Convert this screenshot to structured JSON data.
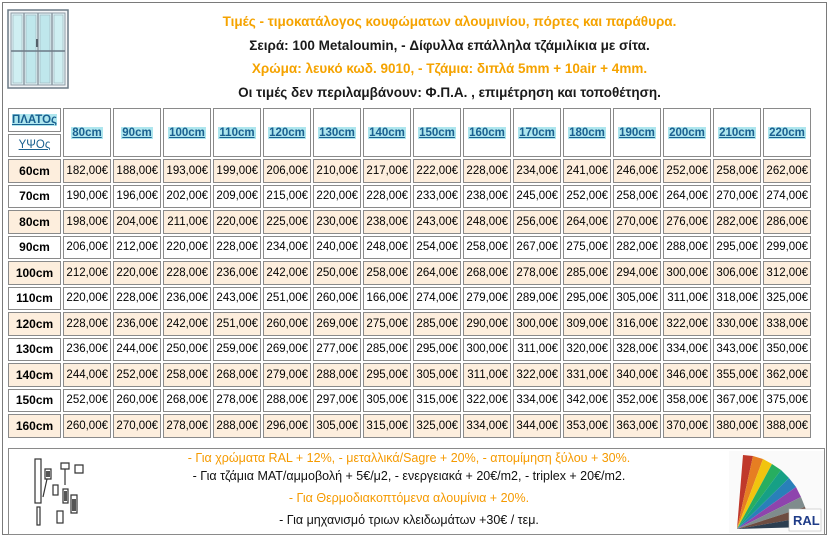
{
  "header": {
    "line1": "Τιμές - τιμοκατάλογος κουφώματων αλουμινίου, πόρτες και παράθυρα.",
    "line2": "Σειρά: 100 Metaloumin, - Δίφυλλα επάλληλα τζάμιλίκια με σίτα.",
    "line3": "Χρώμα: λευκό κωδ. 9010, - Τζάμια: διπλά 5mm + 10air + 4mm.",
    "line4": "Οι τιμές δεν περιλαμβάνουν: Φ.Π.Α. , επιμέτρηση και τοποθέτηση."
  },
  "table": {
    "width_label": "ΠΛΑΤΟς",
    "height_label": "ΥΨΟς",
    "widths": [
      "80cm",
      "90cm",
      "100cm",
      "110cm",
      "120cm",
      "130cm",
      "140cm",
      "150cm",
      "160cm",
      "170cm",
      "180cm",
      "190cm",
      "200cm",
      "210cm",
      "220cm"
    ],
    "rows": [
      {
        "h": "60cm",
        "p": [
          "182,00€",
          "188,00€",
          "193,00€",
          "199,00€",
          "206,00€",
          "210,00€",
          "217,00€",
          "222,00€",
          "228,00€",
          "234,00€",
          "241,00€",
          "246,00€",
          "252,00€",
          "258,00€",
          "262,00€"
        ]
      },
      {
        "h": "70cm",
        "p": [
          "190,00€",
          "196,00€",
          "202,00€",
          "209,00€",
          "215,00€",
          "220,00€",
          "228,00€",
          "233,00€",
          "238,00€",
          "245,00€",
          "252,00€",
          "258,00€",
          "264,00€",
          "270,00€",
          "274,00€"
        ]
      },
      {
        "h": "80cm",
        "p": [
          "198,00€",
          "204,00€",
          "211,00€",
          "220,00€",
          "225,00€",
          "230,00€",
          "238,00€",
          "243,00€",
          "248,00€",
          "256,00€",
          "264,00€",
          "270,00€",
          "276,00€",
          "282,00€",
          "286,00€"
        ]
      },
      {
        "h": "90cm",
        "p": [
          "206,00€",
          "212,00€",
          "220,00€",
          "228,00€",
          "234,00€",
          "240,00€",
          "248,00€",
          "254,00€",
          "258,00€",
          "267,00€",
          "275,00€",
          "282,00€",
          "288,00€",
          "295,00€",
          "299,00€"
        ]
      },
      {
        "h": "100cm",
        "p": [
          "212,00€",
          "220,00€",
          "228,00€",
          "236,00€",
          "242,00€",
          "250,00€",
          "258,00€",
          "264,00€",
          "268,00€",
          "278,00€",
          "285,00€",
          "294,00€",
          "300,00€",
          "306,00€",
          "312,00€"
        ]
      },
      {
        "h": "110cm",
        "p": [
          "220,00€",
          "228,00€",
          "236,00€",
          "243,00€",
          "251,00€",
          "260,00€",
          "166,00€",
          "274,00€",
          "279,00€",
          "289,00€",
          "295,00€",
          "305,00€",
          "311,00€",
          "318,00€",
          "325,00€"
        ]
      },
      {
        "h": "120cm",
        "p": [
          "228,00€",
          "236,00€",
          "242,00€",
          "251,00€",
          "260,00€",
          "269,00€",
          "275,00€",
          "285,00€",
          "290,00€",
          "300,00€",
          "309,00€",
          "316,00€",
          "322,00€",
          "330,00€",
          "338,00€"
        ]
      },
      {
        "h": "130cm",
        "p": [
          "236,00€",
          "244,00€",
          "250,00€",
          "259,00€",
          "269,00€",
          "277,00€",
          "285,00€",
          "295,00€",
          "300,00€",
          "311,00€",
          "320,00€",
          "328,00€",
          "334,00€",
          "343,00€",
          "350,00€"
        ]
      },
      {
        "h": "140cm",
        "p": [
          "244,00€",
          "252,00€",
          "258,00€",
          "268,00€",
          "279,00€",
          "288,00€",
          "295,00€",
          "305,00€",
          "311,00€",
          "322,00€",
          "331,00€",
          "340,00€",
          "346,00€",
          "355,00€",
          "362,00€"
        ]
      },
      {
        "h": "150cm",
        "p": [
          "252,00€",
          "260,00€",
          "268,00€",
          "278,00€",
          "288,00€",
          "297,00€",
          "305,00€",
          "315,00€",
          "322,00€",
          "334,00€",
          "342,00€",
          "352,00€",
          "358,00€",
          "367,00€",
          "375,00€"
        ]
      },
      {
        "h": "160cm",
        "p": [
          "260,00€",
          "270,00€",
          "278,00€",
          "288,00€",
          "296,00€",
          "305,00€",
          "315,00€",
          "325,00€",
          "334,00€",
          "344,00€",
          "353,00€",
          "363,00€",
          "370,00€",
          "380,00€",
          "388,00€"
        ]
      }
    ]
  },
  "footer": {
    "line1": "- Για χρώματα RAL + 12%, - μεταλλικά/Sagre + 20%, - απομίμηση ξύλου + 30%.",
    "line2": "- Για τζάμια MAT/αμμοβολή + 5€/μ2, - ενεργειακά + 20€/m2, - triplex + 20€/m2.",
    "line3": "- Για Θερμοδιακοπτόμενα αλουμίνια + 20%.",
    "line4": "- Για μηχανισμό τριων κλειδωμάτων +30€ / τεμ.",
    "swatch_label": "RAL"
  },
  "colors": {
    "accent_orange": "#f5a300",
    "header_cell_bg": "#aee6ee",
    "alt_row_bg": "#fdeedd"
  }
}
